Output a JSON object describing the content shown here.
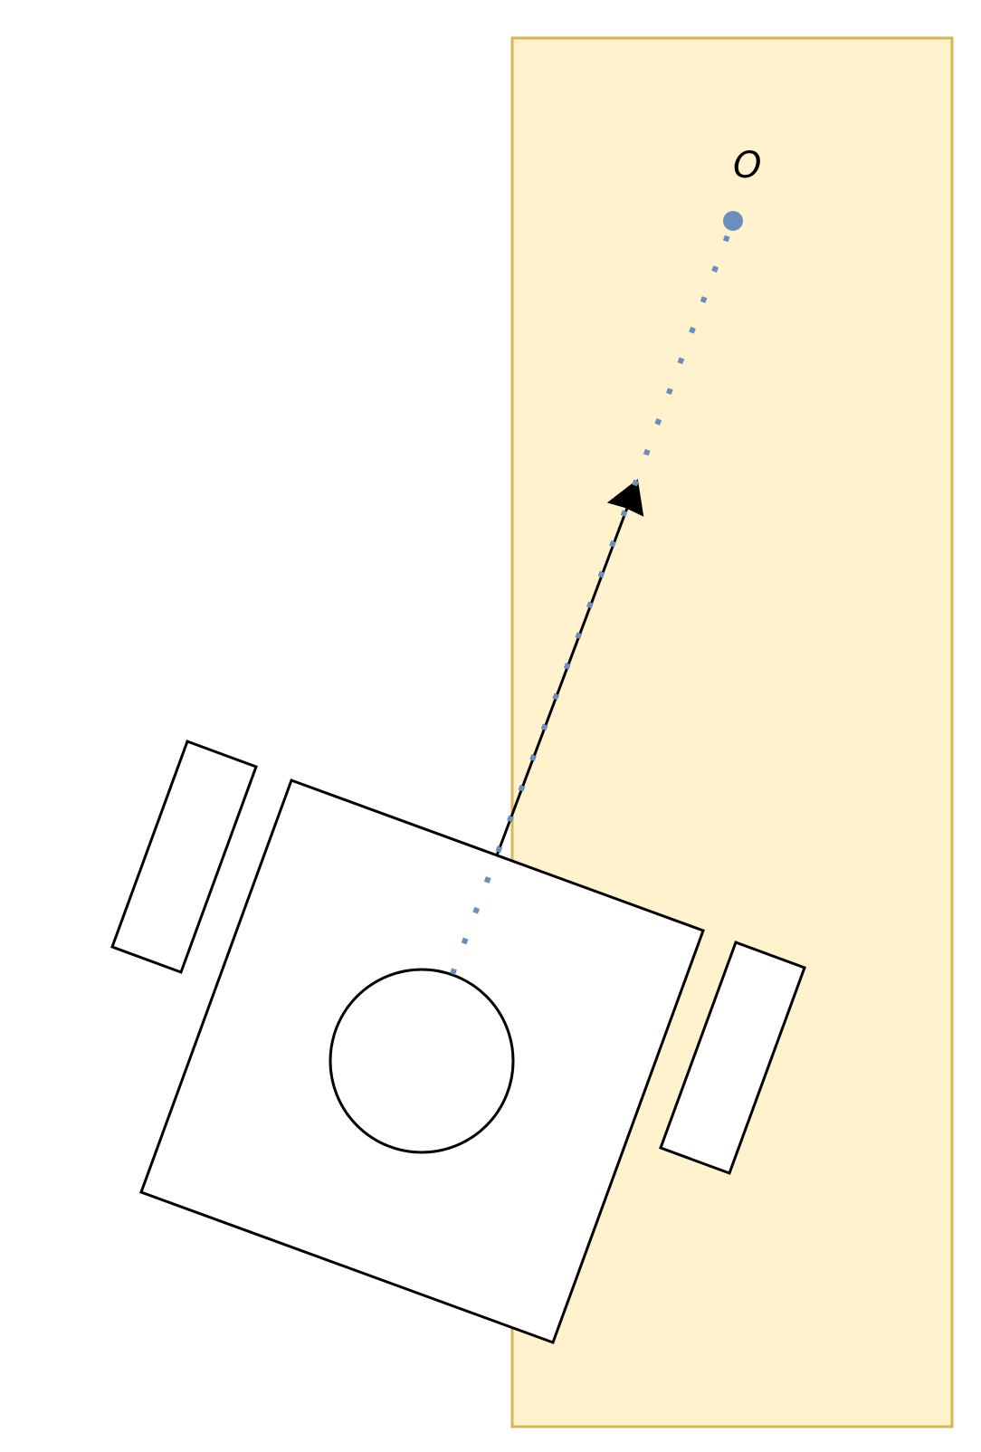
{
  "diagram": {
    "point_label": "O",
    "colors": {
      "zone_fill": "#fff2cc",
      "zone_stroke": "#d6b656",
      "outline": "#000000",
      "body_fill": "#ffffff",
      "ray": "#6c8ebf",
      "point": "#6c8ebf"
    }
  }
}
